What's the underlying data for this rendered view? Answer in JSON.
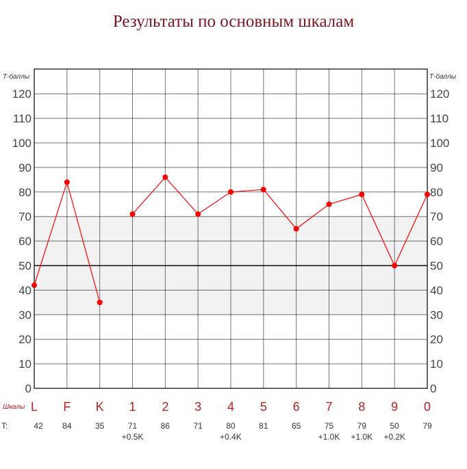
{
  "chart_data": {
    "type": "line",
    "title": "Результаты по основным шкалам",
    "y_axis_label": "Т-баллы",
    "x_axis_label": "Шкалы",
    "t_row_label": "T:",
    "ylim": [
      0,
      130
    ],
    "yticks": [
      0,
      10,
      20,
      30,
      40,
      50,
      60,
      70,
      80,
      90,
      100,
      110,
      120
    ],
    "grid": true,
    "normal_band": [
      30,
      70
    ],
    "reference_line": 50,
    "colors": {
      "line": "#ff0000",
      "title": "#7a1620",
      "scale_label": "#b22222",
      "band": "#f2f2f2"
    },
    "categories": [
      "L",
      "F",
      "K",
      "1",
      "2",
      "3",
      "4",
      "5",
      "6",
      "7",
      "8",
      "9",
      "0"
    ],
    "values": [
      42,
      84,
      35,
      71,
      86,
      71,
      80,
      81,
      65,
      75,
      79,
      50,
      79
    ],
    "segments": [
      [
        0,
        2
      ],
      [
        3,
        12
      ]
    ],
    "t_scores": [
      {
        "value": "42",
        "correction": ""
      },
      {
        "value": "84",
        "correction": ""
      },
      {
        "value": "35",
        "correction": ""
      },
      {
        "value": "71",
        "correction": "+0.5K"
      },
      {
        "value": "86",
        "correction": ""
      },
      {
        "value": "71",
        "correction": ""
      },
      {
        "value": "80",
        "correction": "+0.4K"
      },
      {
        "value": "81",
        "correction": ""
      },
      {
        "value": "65",
        "correction": ""
      },
      {
        "value": "75",
        "correction": "+1.0K"
      },
      {
        "value": "79",
        "correction": "+1.0K"
      },
      {
        "value": "50",
        "correction": "+0.2K"
      },
      {
        "value": "79",
        "correction": ""
      }
    ]
  }
}
